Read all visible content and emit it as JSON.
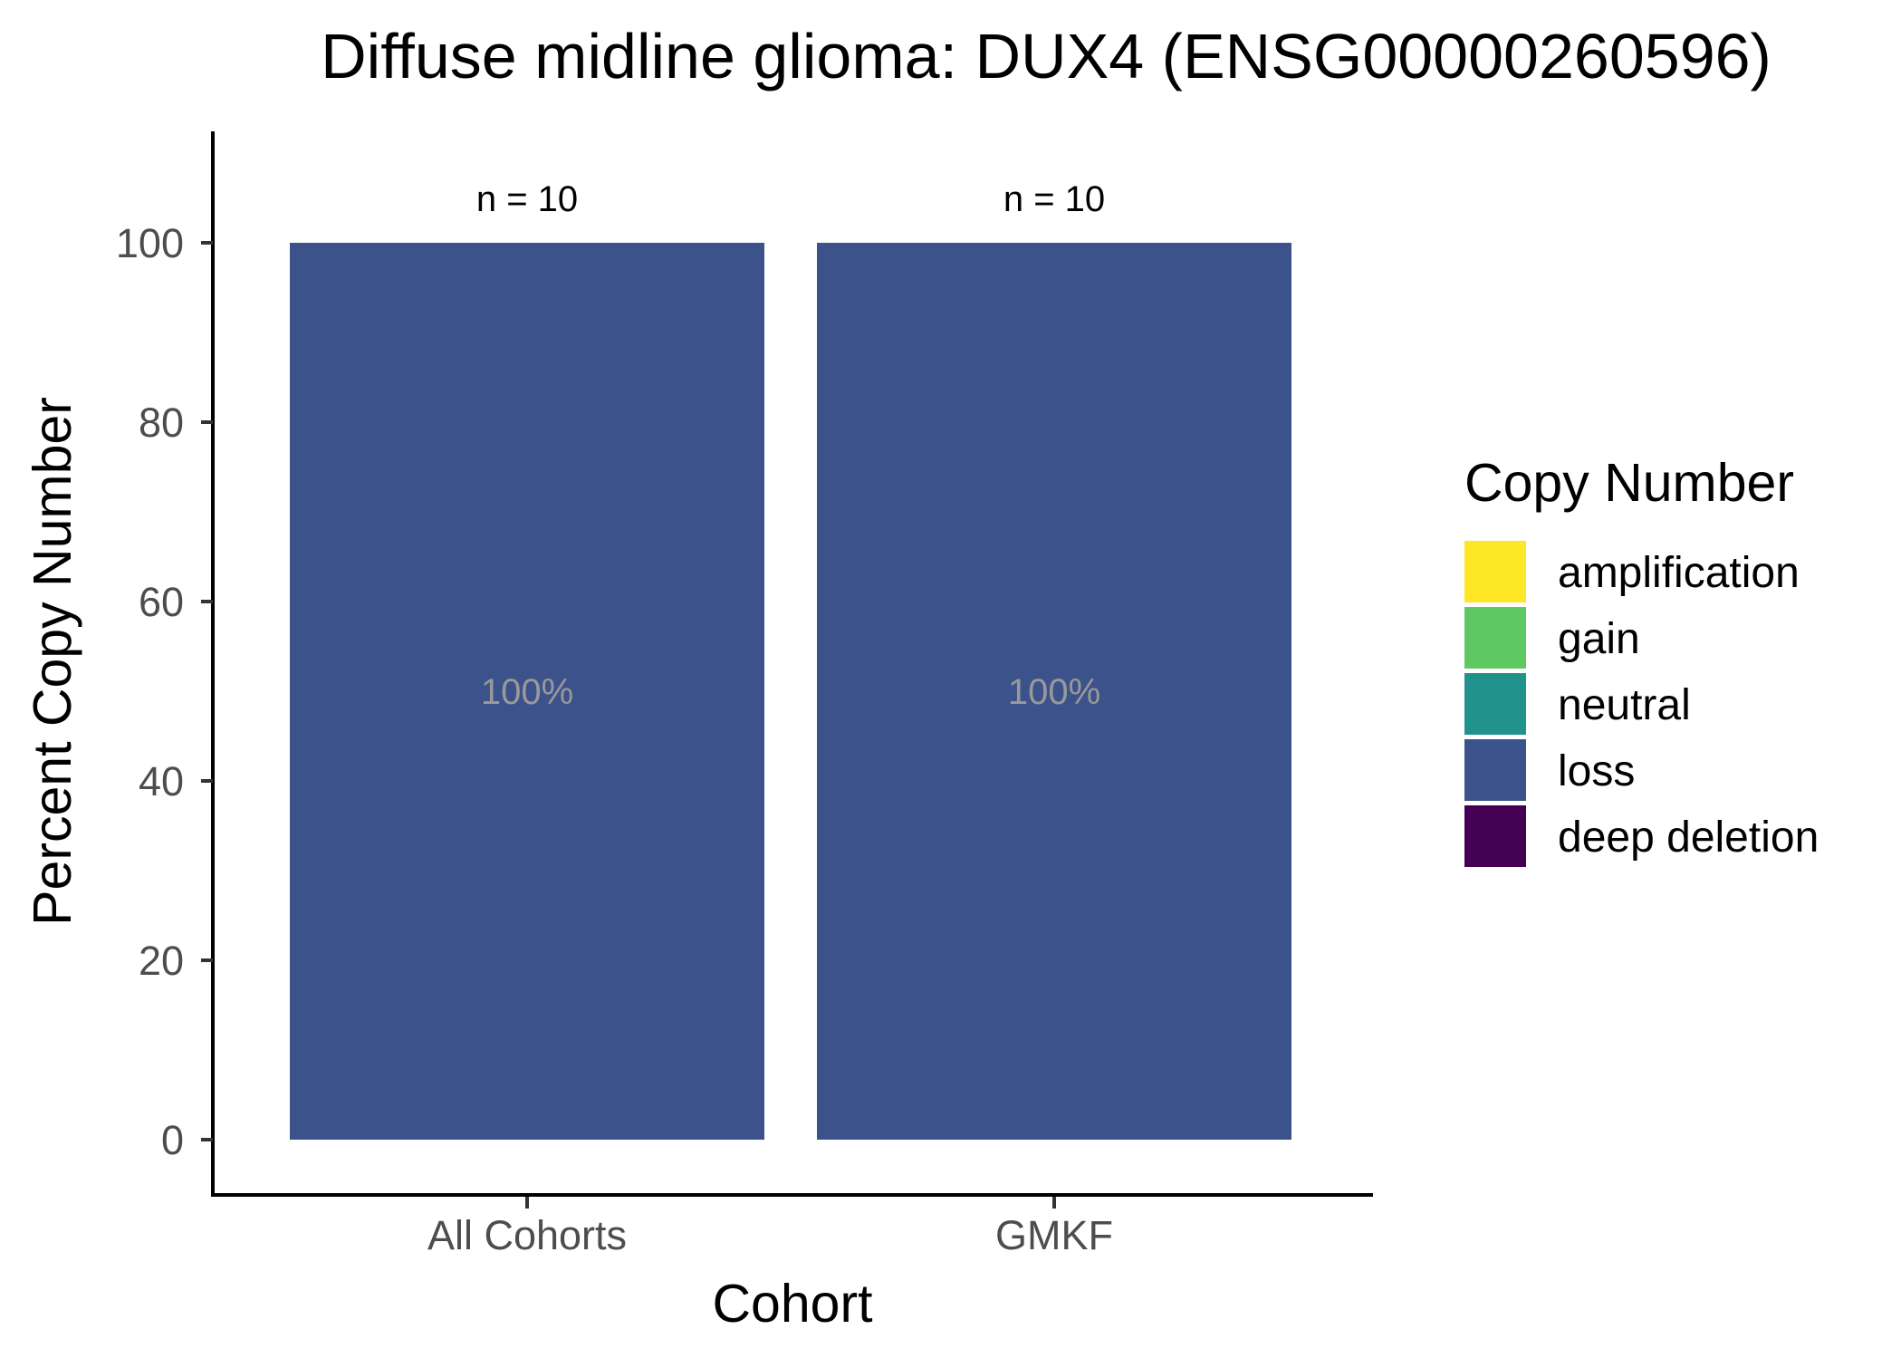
{
  "chart_data": {
    "type": "bar",
    "stacked": true,
    "title": "Diffuse midline glioma: DUX4 (ENSG00000260596)",
    "xlabel": "Cohort",
    "ylabel": "Percent Copy Number",
    "categories": [
      "All Cohorts",
      "GMKF"
    ],
    "series": [
      {
        "name": "amplification",
        "color": "#FDE725",
        "values": [
          0,
          0
        ]
      },
      {
        "name": "gain",
        "color": "#5EC962",
        "values": [
          0,
          0
        ]
      },
      {
        "name": "neutral",
        "color": "#21918C",
        "values": [
          0,
          0
        ]
      },
      {
        "name": "loss",
        "color": "#3B528B",
        "values": [
          100,
          100
        ]
      },
      {
        "name": "deep deletion",
        "color": "#440154",
        "values": [
          0,
          0
        ]
      }
    ],
    "bar_labels": [
      "100%",
      "100%"
    ],
    "counts": [
      "n = 10",
      "n = 10"
    ],
    "ylim": [
      0,
      112
    ],
    "yticks": [
      0,
      20,
      40,
      60,
      80,
      100
    ],
    "grid": false,
    "legend": {
      "title": "Copy Number",
      "position": "right"
    }
  }
}
